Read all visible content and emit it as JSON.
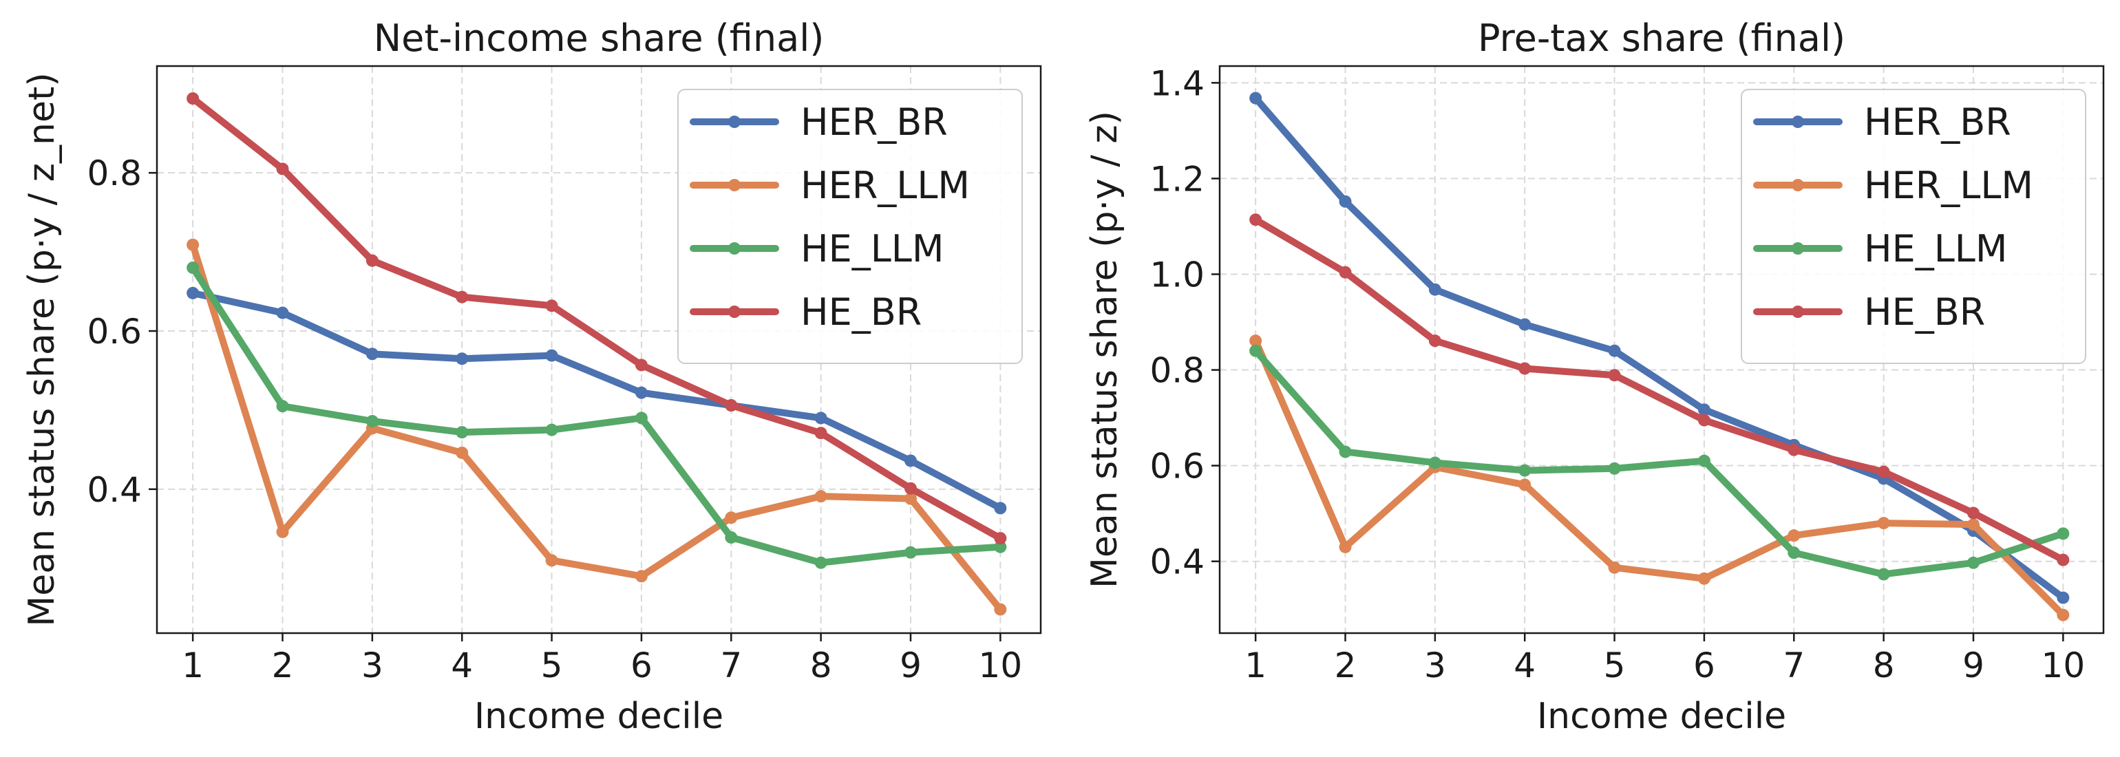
{
  "chart_data": [
    {
      "type": "line",
      "title": "Net-income share (final)",
      "xlabel": "Income decile",
      "ylabel": "Mean status share (p·y / z_net)",
      "x": [
        1,
        2,
        3,
        4,
        5,
        6,
        7,
        8,
        9,
        10
      ],
      "xlim": [
        0.6,
        10.45
      ],
      "ylim": [
        0.218,
        0.935
      ],
      "yticks": [
        0.4,
        0.6,
        0.8
      ],
      "ytick_labels": [
        "0.4",
        "0.6",
        "0.8"
      ],
      "grid": true,
      "legend_position": "top-right",
      "series": [
        {
          "name": "HER_BR",
          "color": "#4c72b0",
          "values": [
            0.648,
            0.623,
            0.571,
            0.565,
            0.569,
            0.522,
            0.506,
            0.49,
            0.436,
            0.376
          ]
        },
        {
          "name": "HER_LLM",
          "color": "#dd8452",
          "values": [
            0.709,
            0.346,
            0.477,
            0.446,
            0.31,
            0.29,
            0.364,
            0.391,
            0.388,
            0.248
          ]
        },
        {
          "name": "HE_LLM",
          "color": "#55a868",
          "values": [
            0.68,
            0.505,
            0.486,
            0.472,
            0.475,
            0.49,
            0.339,
            0.307,
            0.32,
            0.327
          ]
        },
        {
          "name": "HE_BR",
          "color": "#c44e52",
          "values": [
            0.894,
            0.805,
            0.689,
            0.643,
            0.632,
            0.557,
            0.506,
            0.471,
            0.401,
            0.338
          ]
        }
      ]
    },
    {
      "type": "line",
      "title": "Pre-tax share (final)",
      "xlabel": "Income decile",
      "ylabel": "Mean status share (p·y / z)",
      "x": [
        1,
        2,
        3,
        4,
        5,
        6,
        7,
        8,
        9,
        10
      ],
      "xlim": [
        0.6,
        10.45
      ],
      "ylim": [
        0.25,
        1.435
      ],
      "yticks": [
        0.4,
        0.6,
        0.8,
        1.0,
        1.2,
        1.4
      ],
      "ytick_labels": [
        "0.4",
        "0.6",
        "0.8",
        "1.0",
        "1.2",
        "1.4"
      ],
      "grid": true,
      "legend_position": "top-right",
      "series": [
        {
          "name": "HER_BR",
          "color": "#4c72b0",
          "values": [
            1.368,
            1.152,
            0.968,
            0.895,
            0.84,
            0.717,
            0.643,
            0.573,
            0.464,
            0.324
          ]
        },
        {
          "name": "HER_LLM",
          "color": "#dd8452",
          "values": [
            0.861,
            0.43,
            0.597,
            0.56,
            0.387,
            0.364,
            0.454,
            0.48,
            0.477,
            0.288
          ]
        },
        {
          "name": "HE_LLM",
          "color": "#55a868",
          "values": [
            0.84,
            0.629,
            0.606,
            0.59,
            0.594,
            0.61,
            0.418,
            0.373,
            0.397,
            0.458
          ]
        },
        {
          "name": "HE_BR",
          "color": "#c44e52",
          "values": [
            1.114,
            1.004,
            0.861,
            0.803,
            0.789,
            0.695,
            0.633,
            0.587,
            0.501,
            0.403
          ]
        }
      ]
    }
  ]
}
